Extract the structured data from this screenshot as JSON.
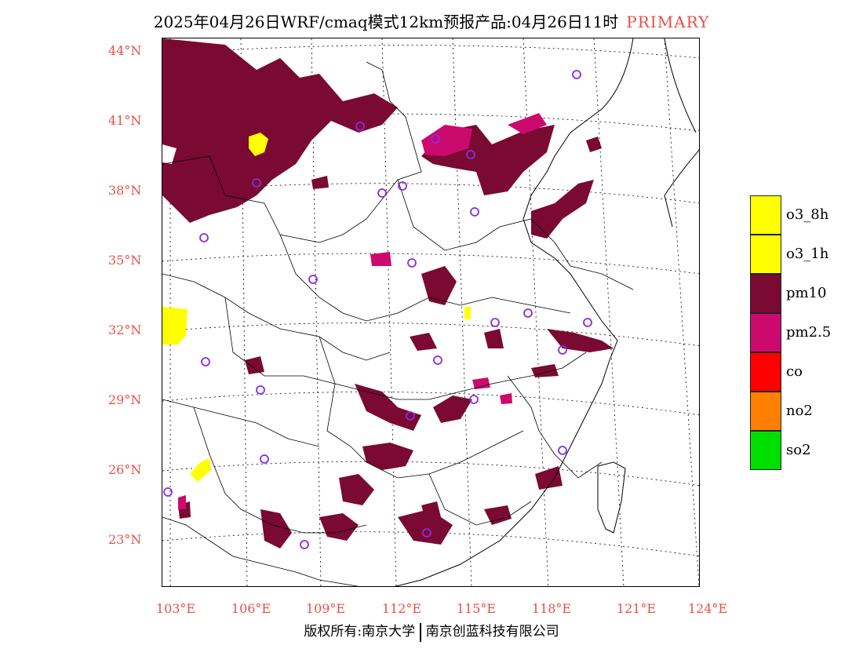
{
  "title": {
    "text": "2025年04月26日WRF/cmaq模式12km预报产品:04月26日11时",
    "tag": "PRIMARY"
  },
  "map": {
    "lat_labels": [
      "44°N",
      "41°N",
      "38°N",
      "35°N",
      "32°N",
      "29°N",
      "26°N",
      "23°N"
    ],
    "lon_labels": [
      "103°E",
      "106°E",
      "109°E",
      "112°E",
      "115°E",
      "118°E",
      "121°E",
      "124°E"
    ],
    "colors": {
      "pm10": "#7a0a32",
      "pm25": "#cc0a6e",
      "o3": "#ffff00",
      "station": "#8a2be2",
      "border": "#000000"
    }
  },
  "legend": {
    "items": [
      {
        "label": "o3_8h",
        "color": "#ffff00"
      },
      {
        "label": "o3_1h",
        "color": "#ffff00"
      },
      {
        "label": "pm10",
        "color": "#7a0a32"
      },
      {
        "label": "pm2.5",
        "color": "#cc0a6e"
      },
      {
        "label": "co",
        "color": "#ff0000"
      },
      {
        "label": "no2",
        "color": "#ff7f00"
      },
      {
        "label": "so2",
        "color": "#00e000"
      }
    ]
  },
  "footer": {
    "left": "版权所有:南京大学",
    "right": "南京创蓝科技有限公司"
  }
}
